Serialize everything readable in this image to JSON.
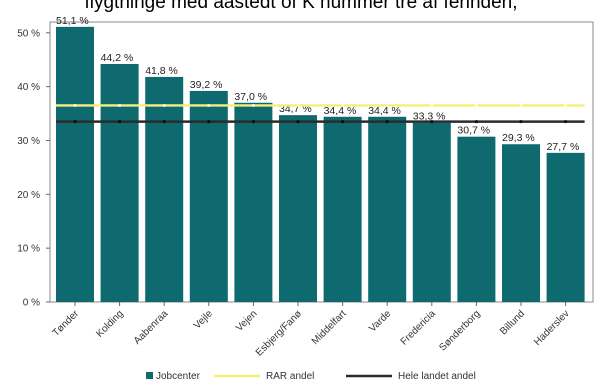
{
  "chart_data": {
    "type": "bar",
    "caption_fragment": "flygtninge med aastedt of K nummer tre af fennden,",
    "categories": [
      "Tønder",
      "Kolding",
      "Aabenraa",
      "Vejle",
      "Vejen",
      "Esbjerg/Fanø",
      "Middelfart",
      "Varde",
      "Fredericia",
      "Sønderborg",
      "Billund",
      "Haderslev"
    ],
    "values": [
      51.1,
      44.2,
      41.8,
      39.2,
      37.0,
      34.7,
      34.4,
      34.4,
      33.3,
      30.7,
      29.3,
      27.7
    ],
    "value_labels": [
      "51,1 %",
      "44,2 %",
      "41,8 %",
      "39,2 %",
      "37,0 %",
      "34,7 %",
      "34,4 %",
      "34,4 %",
      "33,3 %",
      "30,7 %",
      "29,3 %",
      "27,7 %"
    ],
    "ylim": [
      0,
      52
    ],
    "yticks": [
      0,
      10,
      20,
      30,
      40,
      50
    ],
    "ytick_labels": [
      "0 %",
      "10 %",
      "20 %",
      "30 %",
      "40 %",
      "50 %"
    ],
    "reference_lines": [
      {
        "name": "RAR andel",
        "value": 36.5,
        "color": "#f2f07a"
      },
      {
        "name": "Hele landet andel",
        "value": 33.5,
        "color": "#2b2b2b"
      }
    ],
    "series_name": "Jobcenter",
    "bar_color": "#0e6a6f",
    "legend": [
      {
        "label": "Jobcenter",
        "kind": "box",
        "color": "#0e6a6f"
      },
      {
        "label": "RAR andel",
        "kind": "line",
        "color": "#f2f07a"
      },
      {
        "label": "Hele landet andel",
        "kind": "line",
        "color": "#2b2b2b"
      }
    ],
    "legend_position": "bottom",
    "grid": false
  }
}
